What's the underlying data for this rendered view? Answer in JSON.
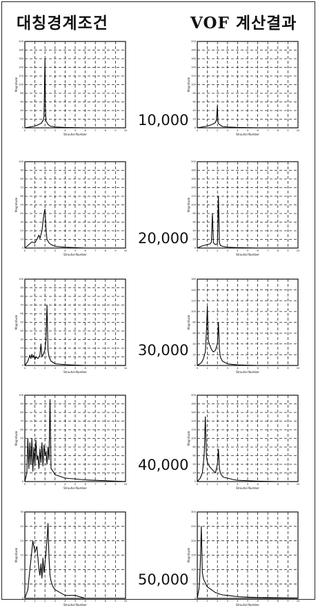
{
  "header": {
    "left_title": "대칭경계조건",
    "right_title": "VOF 계산결과"
  },
  "rows": [
    {
      "label": "10,000"
    },
    {
      "label": "20,000"
    },
    {
      "label": "30,000"
    },
    {
      "label": "40,000"
    },
    {
      "label": "50,000"
    }
  ],
  "chart_data": [
    {
      "type": "line",
      "panel": "대칭경계조건 / 10,000",
      "xlabel": "Strouhal Number",
      "ylabel": "Magnitude",
      "xlim": [
        0,
        10
      ],
      "ylim": [
        0,
        200
      ],
      "xticks": [
        0,
        1,
        2,
        3,
        4,
        5,
        6,
        7,
        8,
        9,
        10
      ],
      "yticks": [
        0,
        20,
        40,
        60,
        80,
        100,
        120,
        140,
        160,
        180,
        200
      ],
      "grid": true,
      "series": [
        {
          "x": [
            0,
            0.5,
            1.0,
            1.4,
            1.6,
            1.8,
            1.9,
            2.0,
            2.05,
            2.1,
            2.2,
            2.3,
            2.5,
            3.0,
            4.0,
            6.0,
            8.0,
            10.0
          ],
          "y": [
            0,
            2,
            4,
            8,
            10,
            16,
            25,
            160,
            40,
            16,
            12,
            8,
            4,
            2,
            1,
            0,
            0,
            0
          ]
        }
      ]
    },
    {
      "type": "line",
      "panel": "VOF 계산결과 / 10,000",
      "xlabel": "Strouhal Number",
      "ylabel": "Magnitude",
      "xlim": [
        0,
        10
      ],
      "ylim": [
        0,
        200
      ],
      "xticks": [
        0,
        1,
        2,
        3,
        4,
        5,
        6,
        7,
        8,
        9,
        10
      ],
      "yticks": [
        0,
        20,
        40,
        60,
        80,
        100,
        120,
        140,
        160,
        180,
        200
      ],
      "grid": true,
      "series": [
        {
          "x": [
            0,
            0.5,
            1.0,
            1.5,
            1.8,
            1.9,
            2.0,
            2.05,
            2.1,
            2.2,
            2.3,
            2.5,
            3.0,
            4.0,
            6.0,
            8.0,
            10.0
          ],
          "y": [
            0,
            2,
            4,
            8,
            12,
            18,
            52,
            14,
            10,
            8,
            6,
            3,
            2,
            1,
            0,
            0,
            0
          ]
        }
      ]
    },
    {
      "type": "line",
      "panel": "대칭경계조건 / 20,000",
      "xlabel": "Strouhal Number",
      "ylabel": "Magnitude",
      "xlim": [
        0,
        10
      ],
      "ylim": [
        0,
        100
      ],
      "xticks": [
        0,
        1,
        2,
        3,
        4,
        5,
        6,
        7,
        8,
        9,
        10
      ],
      "yticks": [
        0,
        10,
        20,
        30,
        40,
        50,
        60,
        70,
        80,
        90,
        100
      ],
      "grid": true,
      "series": [
        {
          "x": [
            0,
            0.3,
            0.5,
            0.7,
            1.0,
            1.2,
            1.4,
            1.5,
            1.7,
            1.9,
            2.0,
            2.1,
            2.2,
            2.4,
            2.6,
            3.0,
            4.0,
            6.0,
            8.0,
            10.0
          ],
          "y": [
            0,
            3,
            5,
            7,
            6,
            10,
            15,
            11,
            20,
            40,
            45,
            22,
            10,
            6,
            4,
            2,
            1,
            0,
            0,
            0
          ]
        }
      ]
    },
    {
      "type": "line",
      "panel": "VOF 계산결과 / 20,000",
      "xlabel": "Strouhal Number",
      "ylabel": "Magnitude",
      "xlim": [
        0,
        10
      ],
      "ylim": [
        0,
        200
      ],
      "xticks": [
        0,
        1,
        2,
        3,
        4,
        5,
        6,
        7,
        8,
        9,
        10
      ],
      "yticks": [
        0,
        20,
        40,
        60,
        80,
        100,
        120,
        140,
        160,
        180,
        200
      ],
      "grid": true,
      "series": [
        {
          "x": [
            0,
            0.5,
            1.0,
            1.3,
            1.4,
            1.5,
            1.6,
            1.8,
            2.0,
            2.1,
            2.2,
            2.3,
            2.5,
            3.0,
            4.0,
            6.0,
            8.0,
            10.0
          ],
          "y": [
            0,
            5,
            8,
            10,
            14,
            80,
            12,
            8,
            10,
            120,
            12,
            6,
            4,
            2,
            1,
            0,
            0,
            0
          ]
        }
      ]
    },
    {
      "type": "line",
      "panel": "대칭경계조건 / 30,000",
      "xlabel": "Strouhal Number",
      "ylabel": "Magnitude",
      "xlim": [
        0,
        10
      ],
      "ylim": [
        0,
        100
      ],
      "xticks": [
        0,
        1,
        2,
        3,
        4,
        5,
        6,
        7,
        8,
        9,
        10
      ],
      "yticks": [
        0,
        10,
        20,
        30,
        40,
        50,
        60,
        70,
        80,
        90,
        100
      ],
      "grid": true,
      "series": [
        {
          "x": [
            0,
            0.3,
            0.5,
            0.6,
            0.7,
            0.8,
            0.9,
            1.0,
            1.1,
            1.3,
            1.5,
            1.6,
            1.7,
            1.8,
            2.0,
            2.1,
            2.2,
            2.3,
            2.4,
            2.6,
            3.0,
            4.0,
            6.0,
            8.0,
            10.0
          ],
          "y": [
            0,
            5,
            12,
            8,
            13,
            9,
            12,
            7,
            10,
            8,
            12,
            25,
            10,
            12,
            18,
            30,
            70,
            18,
            10,
            5,
            2,
            1,
            0,
            0,
            0
          ]
        }
      ]
    },
    {
      "type": "line",
      "panel": "VOF 계산결과 / 30,000",
      "xlabel": "Strouhal Number",
      "ylabel": "Magnitude",
      "xlim": [
        0,
        10
      ],
      "ylim": [
        0,
        160
      ],
      "xticks": [
        0,
        1,
        2,
        3,
        4,
        5,
        6,
        7,
        8,
        9,
        10
      ],
      "yticks": [
        0,
        20,
        40,
        60,
        80,
        100,
        120,
        140,
        160
      ],
      "grid": true,
      "series": [
        {
          "x": [
            0,
            0.4,
            0.6,
            0.8,
            0.9,
            1.0,
            1.1,
            1.2,
            1.4,
            1.6,
            1.8,
            2.0,
            2.1,
            2.2,
            2.3,
            2.5,
            3.0,
            4.0,
            6.0,
            8.0,
            10.0
          ],
          "y": [
            0,
            5,
            12,
            25,
            60,
            110,
            45,
            40,
            30,
            25,
            28,
            40,
            80,
            30,
            15,
            8,
            3,
            1,
            0,
            0,
            0
          ]
        }
      ]
    },
    {
      "type": "line",
      "panel": "대칭경계조건 / 40,000",
      "xlabel": "Strouhal Number",
      "ylabel": "Magnitude",
      "xlim": [
        0,
        10
      ],
      "ylim": [
        0,
        100
      ],
      "xticks": [
        0,
        1,
        2,
        3,
        4,
        5,
        6,
        7,
        8,
        9,
        10
      ],
      "yticks": [
        0,
        10,
        20,
        30,
        40,
        50,
        60,
        70,
        80,
        90,
        100
      ],
      "grid": true,
      "series": [
        {
          "x": [
            0,
            0.2,
            0.3,
            0.4,
            0.5,
            0.6,
            0.7,
            0.8,
            0.9,
            1.0,
            1.1,
            1.2,
            1.3,
            1.4,
            1.5,
            1.6,
            1.7,
            1.8,
            1.9,
            2.0,
            2.1,
            2.2,
            2.3,
            2.4,
            2.5,
            2.6,
            2.8,
            3.0,
            3.5,
            4.0,
            5.0,
            6.0,
            8.0,
            10.0
          ],
          "y": [
            0,
            10,
            50,
            15,
            45,
            20,
            50,
            12,
            40,
            18,
            48,
            25,
            30,
            15,
            38,
            22,
            45,
            18,
            42,
            30,
            35,
            20,
            40,
            25,
            95,
            15,
            12,
            8,
            6,
            4,
            3,
            2,
            1,
            0
          ]
        }
      ]
    },
    {
      "type": "line",
      "panel": "VOF 계산결과 / 40,000",
      "xlabel": "Strouhal Number",
      "ylabel": "Magnitude",
      "xlim": [
        0,
        10
      ],
      "ylim": [
        0,
        200
      ],
      "xticks": [
        0,
        1,
        2,
        3,
        4,
        5,
        6,
        7,
        8,
        9,
        10
      ],
      "yticks": [
        0,
        20,
        40,
        60,
        80,
        100,
        120,
        140,
        160,
        180,
        200
      ],
      "grid": true,
      "series": [
        {
          "x": [
            0,
            0.3,
            0.5,
            0.6,
            0.7,
            0.8,
            0.9,
            1.0,
            1.2,
            1.4,
            1.6,
            1.8,
            2.0,
            2.1,
            2.2,
            2.3,
            2.4,
            2.6,
            3.0,
            3.5,
            4.0,
            5.0,
            6.0,
            8.0,
            10.0
          ],
          "y": [
            0,
            8,
            20,
            40,
            70,
            150,
            60,
            45,
            35,
            30,
            25,
            20,
            40,
            75,
            30,
            20,
            15,
            10,
            8,
            5,
            3,
            2,
            1,
            0,
            0
          ]
        }
      ]
    },
    {
      "type": "line",
      "panel": "대칭경계조건 / 50,000",
      "xlabel": "Strouhal Number",
      "ylabel": "Magnitude",
      "xlim": [
        0,
        10
      ],
      "ylim": [
        0,
        30
      ],
      "xticks": [
        0,
        1,
        2,
        3,
        4,
        5,
        6,
        7,
        8,
        9,
        10
      ],
      "yticks": [
        0,
        5,
        10,
        15,
        20,
        25,
        30
      ],
      "grid": true,
      "series": [
        {
          "x": [
            0,
            0.3,
            0.5,
            0.8,
            1.0,
            1.2,
            1.4,
            1.5,
            1.6,
            1.7,
            1.8,
            1.9,
            2.0,
            2.1,
            2.2,
            2.3,
            2.4,
            2.5,
            2.6,
            2.8,
            3.0,
            3.5,
            4.0,
            5.0,
            6.0,
            8.0,
            10.0
          ],
          "y": [
            0,
            3,
            10,
            20,
            16,
            18,
            10,
            8,
            12,
            7,
            14,
            9,
            12,
            16,
            20,
            26,
            14,
            8,
            6,
            4,
            3,
            2,
            1,
            1,
            0,
            0,
            0
          ]
        }
      ]
    },
    {
      "type": "line",
      "panel": "VOF 계산결과 / 50,000",
      "xlabel": "Strouhal Number",
      "ylabel": "Magnitude",
      "xlim": [
        0,
        10
      ],
      "ylim": [
        0,
        300
      ],
      "xticks": [
        0,
        1,
        2,
        3,
        4,
        5,
        6,
        7,
        8,
        9,
        10
      ],
      "yticks": [
        0,
        50,
        100,
        150,
        200,
        250,
        300
      ],
      "grid": true,
      "series": [
        {
          "x": [
            0,
            0.2,
            0.3,
            0.4,
            0.5,
            0.6,
            0.7,
            0.8,
            0.9,
            1.0,
            1.2,
            1.4,
            1.6,
            1.8,
            2.0,
            2.2,
            2.5,
            3.0,
            3.5,
            4.0,
            5.0,
            6.0,
            8.0,
            10.0
          ],
          "y": [
            0,
            40,
            120,
            250,
            90,
            70,
            60,
            55,
            45,
            40,
            35,
            30,
            25,
            20,
            18,
            15,
            12,
            10,
            8,
            6,
            4,
            3,
            2,
            1
          ]
        }
      ]
    }
  ]
}
